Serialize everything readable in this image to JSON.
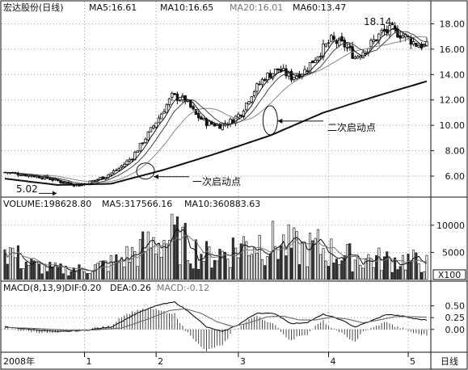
{
  "chart_data": [
    {
      "type": "candlestick",
      "title": "宏达股份(日线)",
      "ma_labels": [
        {
          "text": "MA5:16.61"
        },
        {
          "text": "MA10:16.65"
        },
        {
          "text": "MA20:16.01",
          "color": "#888888"
        },
        {
          "text": "MA60:13.47"
        }
      ],
      "ylim": [
        4.6,
        18.6
      ],
      "yticks": [
        "18.00",
        "16.00",
        "14.00",
        "12.00",
        "10.00",
        "8.00",
        "6.00"
      ],
      "ytick_values": [
        18,
        16,
        14,
        12,
        10,
        8,
        6
      ],
      "price_keypoints": [
        [
          0,
          6.3
        ],
        [
          8,
          6.1
        ],
        [
          15,
          5.9
        ],
        [
          22,
          5.5
        ],
        [
          28,
          5.3
        ],
        [
          33,
          5.6
        ],
        [
          38,
          6.0
        ],
        [
          43,
          6.6
        ],
        [
          48,
          7.5
        ],
        [
          53,
          9.0
        ],
        [
          58,
          10.6
        ],
        [
          63,
          12.3
        ],
        [
          68,
          12.0
        ],
        [
          72,
          10.8
        ],
        [
          76,
          10.2
        ],
        [
          81,
          10.0
        ],
        [
          85,
          10.3
        ],
        [
          89,
          11.0
        ],
        [
          93,
          12.5
        ],
        [
          98,
          13.8
        ],
        [
          103,
          14.4
        ],
        [
          108,
          13.8
        ],
        [
          113,
          14.3
        ],
        [
          118,
          15.6
        ],
        [
          123,
          16.7
        ],
        [
          128,
          16.3
        ],
        [
          132,
          15.4
        ],
        [
          137,
          16.2
        ],
        [
          142,
          17.3
        ],
        [
          146,
          17.5
        ],
        [
          151,
          17.0
        ],
        [
          155,
          16.4
        ],
        [
          159,
          16.2
        ]
      ],
      "ma60_keypoints": [
        [
          0,
          5.8
        ],
        [
          20,
          5.3
        ],
        [
          40,
          5.4
        ],
        [
          60,
          6.5
        ],
        [
          80,
          7.8
        ],
        [
          100,
          9.2
        ],
        [
          120,
          11.0
        ],
        [
          140,
          12.3
        ],
        [
          159,
          13.47
        ]
      ],
      "annotations": [
        {
          "text": "5.02",
          "price": 5.02
        },
        {
          "text": "18.14",
          "price": 18.14
        },
        {
          "text": "一次启动点"
        },
        {
          "text": "二次启动点"
        }
      ]
    },
    {
      "type": "bar",
      "title": "VOLUME:198628.80",
      "ma_labels": [
        {
          "text": "MA5:317566.16"
        },
        {
          "text": "MA10:360883.63"
        }
      ],
      "ylim": [
        0,
        12500
      ],
      "yticks": [
        "10000",
        "5000"
      ],
      "ytick_values": [
        10000,
        5000
      ],
      "unit_box": "X100",
      "volume_keypoints": [
        [
          0,
          6000
        ],
        [
          6,
          3500
        ],
        [
          12,
          2300
        ],
        [
          20,
          1800
        ],
        [
          28,
          1800
        ],
        [
          35,
          2300
        ],
        [
          42,
          3200
        ],
        [
          50,
          5000
        ],
        [
          58,
          7000
        ],
        [
          64,
          7500
        ],
        [
          70,
          5600
        ],
        [
          76,
          4300
        ],
        [
          82,
          4800
        ],
        [
          88,
          5900
        ],
        [
          94,
          7000
        ],
        [
          100,
          6600
        ],
        [
          106,
          6100
        ],
        [
          112,
          5300
        ],
        [
          118,
          5800
        ],
        [
          124,
          4700
        ],
        [
          130,
          4000
        ],
        [
          138,
          3700
        ],
        [
          146,
          3400
        ],
        [
          152,
          3500
        ],
        [
          159,
          2800
        ]
      ]
    },
    {
      "type": "line",
      "title": "MACD(8,13,9)",
      "ma_labels": [
        {
          "text": "DIF:0.20"
        },
        {
          "text": "DEA:0.26"
        },
        {
          "text": "MACD:-0.12",
          "color": "#888888"
        }
      ],
      "ylim": [
        -0.45,
        0.75
      ],
      "yticks": [
        "0.50",
        "0.25",
        "0.00"
      ],
      "ytick_values": [
        0.5,
        0.25,
        0.0
      ],
      "dif_keypoints": [
        [
          0,
          0.05
        ],
        [
          10,
          0.0
        ],
        [
          20,
          -0.05
        ],
        [
          30,
          -0.02
        ],
        [
          40,
          0.05
        ],
        [
          50,
          0.35
        ],
        [
          58,
          0.52
        ],
        [
          64,
          0.58
        ],
        [
          70,
          0.35
        ],
        [
          76,
          0.05
        ],
        [
          82,
          -0.05
        ],
        [
          88,
          0.1
        ],
        [
          95,
          0.35
        ],
        [
          102,
          0.33
        ],
        [
          108,
          0.12
        ],
        [
          114,
          0.15
        ],
        [
          120,
          0.32
        ],
        [
          126,
          0.22
        ],
        [
          132,
          0.05
        ],
        [
          138,
          0.18
        ],
        [
          144,
          0.32
        ],
        [
          150,
          0.28
        ],
        [
          155,
          0.22
        ],
        [
          159,
          0.2
        ]
      ],
      "dea_keypoints": [
        [
          0,
          0.04
        ],
        [
          12,
          0.02
        ],
        [
          24,
          -0.02
        ],
        [
          34,
          -0.01
        ],
        [
          44,
          0.03
        ],
        [
          54,
          0.22
        ],
        [
          62,
          0.4
        ],
        [
          68,
          0.44
        ],
        [
          74,
          0.34
        ],
        [
          80,
          0.16
        ],
        [
          86,
          0.06
        ],
        [
          92,
          0.14
        ],
        [
          99,
          0.27
        ],
        [
          105,
          0.28
        ],
        [
          111,
          0.2
        ],
        [
          117,
          0.2
        ],
        [
          123,
          0.26
        ],
        [
          129,
          0.22
        ],
        [
          135,
          0.14
        ],
        [
          141,
          0.2
        ],
        [
          147,
          0.27
        ],
        [
          153,
          0.27
        ],
        [
          159,
          0.26
        ]
      ]
    }
  ],
  "x_axis": {
    "labels": [
      {
        "text": "2008年",
        "index": 0
      },
      {
        "text": "1",
        "index": 30
      },
      {
        "text": "2",
        "index": 57
      },
      {
        "text": "3",
        "index": 88
      },
      {
        "text": "4",
        "index": 122
      },
      {
        "text": "5",
        "index": 152
      }
    ],
    "period_label": "日线",
    "n": 160
  }
}
